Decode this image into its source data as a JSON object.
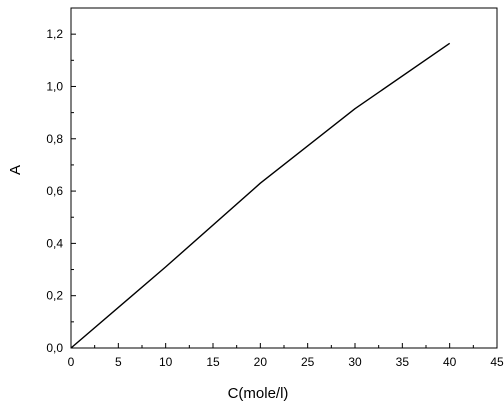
{
  "chart_data": {
    "type": "line",
    "title": "",
    "xlabel": "C(mole/l)",
    "ylabel": "A",
    "xlim": [
      0,
      45
    ],
    "ylim": [
      0,
      1.3
    ],
    "grid": false,
    "x_ticks": [
      0,
      5,
      10,
      15,
      20,
      25,
      30,
      35,
      40,
      45
    ],
    "x_tick_labels": [
      "0",
      "5",
      "10",
      "15",
      "20",
      "25",
      "30",
      "35",
      "40",
      "45"
    ],
    "y_ticks": [
      0,
      0.2,
      0.4,
      0.6,
      0.8,
      1.0,
      1.2
    ],
    "y_tick_labels": [
      "0,0",
      "0,2",
      "0,4",
      "0,6",
      "0,8",
      "1,0",
      "1,2"
    ],
    "series": [
      {
        "x": [
          0,
          10,
          20,
          30,
          40
        ],
        "y": [
          0,
          0.31,
          0.63,
          0.915,
          1.165
        ],
        "color": "#000000"
      }
    ]
  }
}
